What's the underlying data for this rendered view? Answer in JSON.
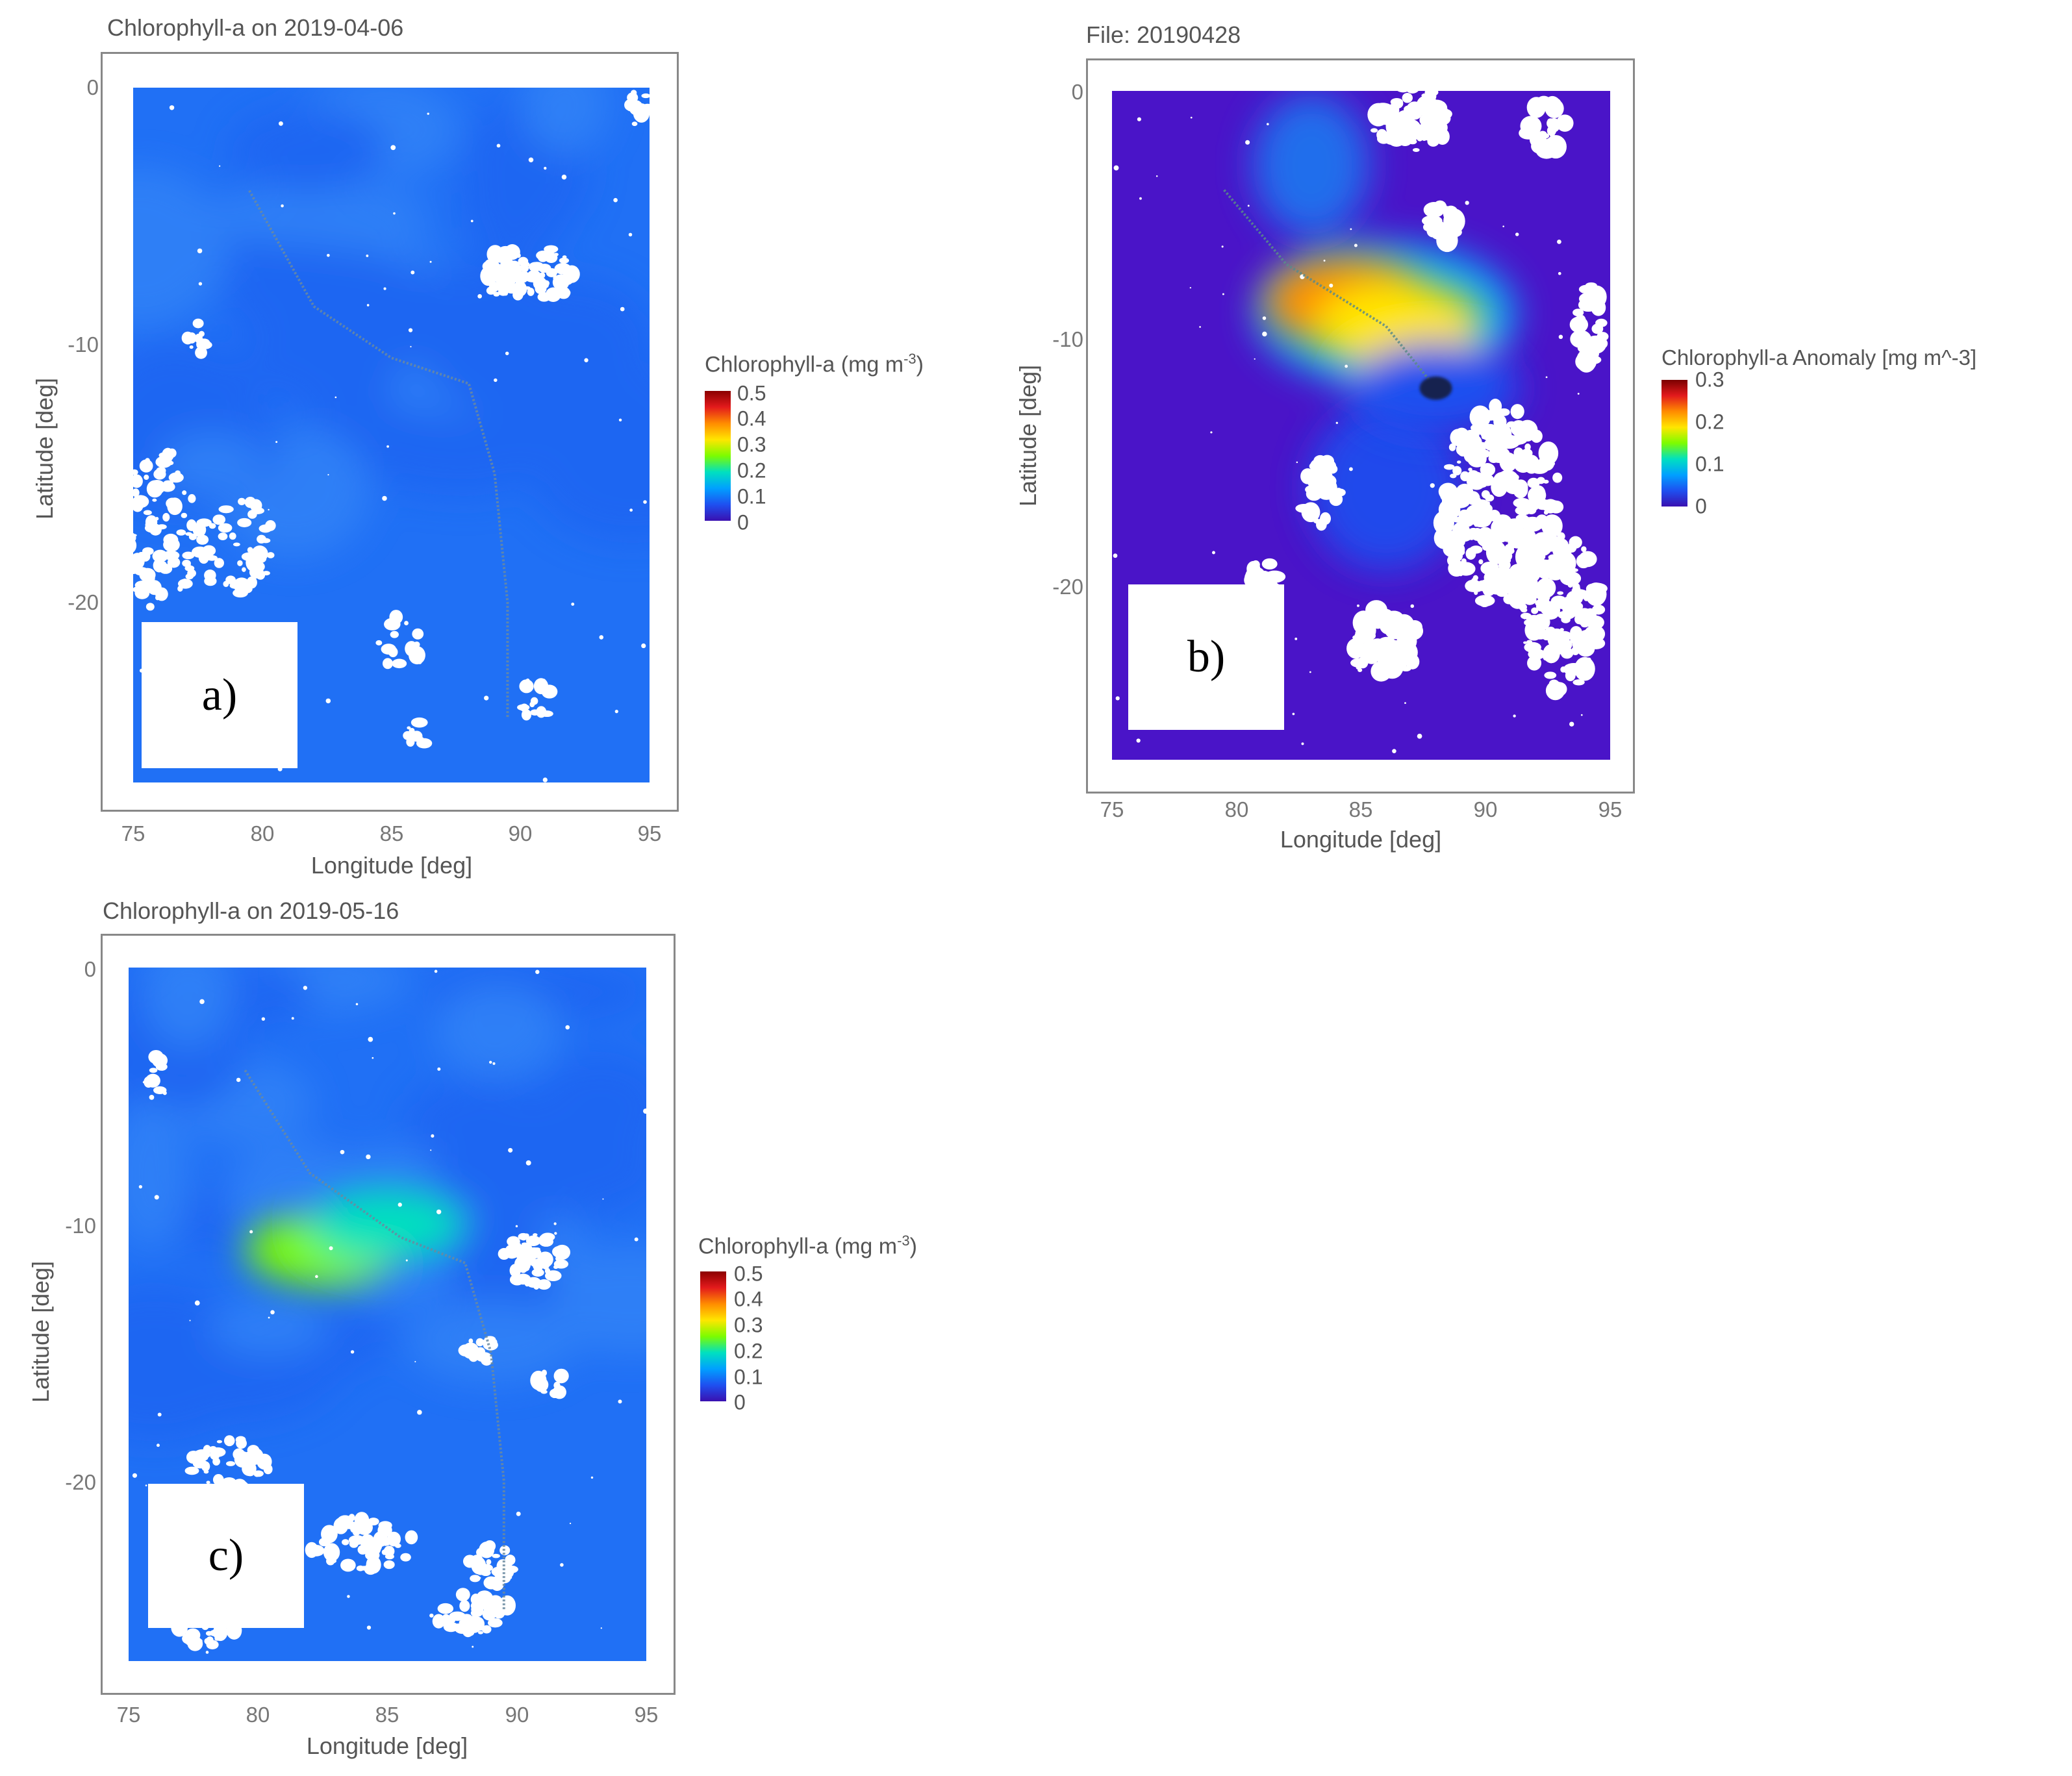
{
  "chart_data": [
    {
      "type": "heatmap",
      "panel_label": "a)",
      "title": "Chlorophyll-a on 2019-04-06",
      "xlabel": "Longitude [deg]",
      "ylabel": "Latitude [deg]",
      "xlim": [
        75,
        95
      ],
      "ylim": [
        -27,
        0
      ],
      "x_ticks": [
        "75",
        "80",
        "85",
        "90",
        "95"
      ],
      "y_ticks": [
        "0",
        "-10",
        "-20"
      ],
      "colorbar": {
        "title": "Chlorophyll-a (mg m",
        "title_sup": "-3",
        "title_end": ")",
        "range": [
          0,
          0.5
        ],
        "ticks": [
          "0.5",
          "0.4",
          "0.3",
          "0.2",
          "0.1",
          "0"
        ]
      },
      "track": [
        [
          79.5,
          -4
        ],
        [
          82,
          -8.5
        ],
        [
          85,
          -10.5
        ],
        [
          88,
          -11.5
        ],
        [
          89,
          -15
        ],
        [
          89.5,
          -20
        ],
        [
          89.5,
          -24.5
        ]
      ],
      "high_regions": [],
      "cloud_areas": [
        "south-west",
        "north-east",
        "scattered"
      ]
    },
    {
      "type": "heatmap",
      "panel_label": "b)",
      "title": "File: 20190428",
      "xlabel": "Longitude [deg]",
      "ylabel": "Latitude [deg]",
      "xlim": [
        75,
        95
      ],
      "ylim": [
        -27,
        0
      ],
      "x_ticks": [
        "75",
        "80",
        "85",
        "90",
        "95"
      ],
      "y_ticks": [
        "0",
        "-10",
        "-20"
      ],
      "colorbar": {
        "title": "Chlorophyll-a Anomaly [mg m^-3]",
        "range": [
          0,
          0.3
        ],
        "ticks": [
          "0.3",
          "0.2",
          "0.1",
          "0"
        ]
      },
      "track": [
        [
          79.5,
          -4
        ],
        [
          82,
          -7
        ],
        [
          86,
          -9.5
        ],
        [
          88,
          -12
        ]
      ],
      "high_regions": [
        {
          "lon": 84.5,
          "lat": -8.5,
          "value": 0.2
        },
        {
          "lon": 86.5,
          "lat": -9.5,
          "value": 0.17
        },
        {
          "lon": 88,
          "lat": -12,
          "value": 0.02
        }
      ],
      "cloud_areas": [
        "south-east",
        "north",
        "scattered"
      ]
    },
    {
      "type": "heatmap",
      "panel_label": "c)",
      "title": "Chlorophyll-a on 2019-05-16",
      "xlabel": "Longitude [deg]",
      "ylabel": "Latitude [deg]",
      "xlim": [
        75,
        95
      ],
      "ylim": [
        -27,
        0
      ],
      "x_ticks": [
        "75",
        "80",
        "85",
        "90",
        "95"
      ],
      "y_ticks": [
        "0",
        "-10",
        "-20"
      ],
      "colorbar": {
        "title": "Chlorophyll-a (mg m",
        "title_sup": "-3",
        "title_end": ")",
        "range": [
          0,
          0.5
        ],
        "ticks": [
          "0.5",
          "0.4",
          "0.3",
          "0.2",
          "0.1",
          "0"
        ]
      },
      "track": [
        [
          79.5,
          -4
        ],
        [
          82,
          -8
        ],
        [
          85.5,
          -10.5
        ],
        [
          88,
          -11.5
        ],
        [
          89,
          -15
        ],
        [
          89.5,
          -20
        ],
        [
          89.5,
          -25
        ]
      ],
      "high_regions": [
        {
          "lon": 82.5,
          "lat": -11,
          "value": 0.2
        },
        {
          "lon": 85,
          "lat": -10,
          "value": 0.18
        }
      ],
      "cloud_areas": [
        "south",
        "east",
        "scattered"
      ]
    }
  ],
  "colors": {
    "ocean_low": "#1e5cf2",
    "ocean_base": "#2070f5",
    "anomaly_base": "#4a14c8",
    "cloud": "#ffffff",
    "frame": "#888888"
  }
}
